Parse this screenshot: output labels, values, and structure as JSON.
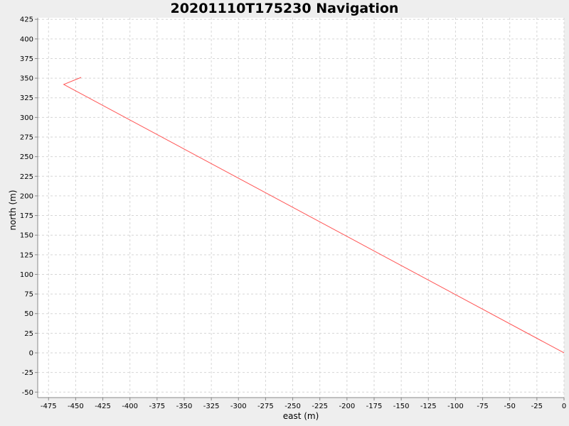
{
  "chart_data": {
    "type": "line",
    "title": "20201110T175230 Navigation",
    "xlabel": "east (m)",
    "ylabel": "north (m)",
    "xlim": [
      -485,
      0
    ],
    "ylim": [
      -57,
      427
    ],
    "xticks": [
      -475,
      -450,
      -425,
      -400,
      -375,
      -350,
      -325,
      -300,
      -275,
      -250,
      -225,
      -200,
      -175,
      -150,
      -125,
      -100,
      -75,
      -50,
      -25,
      0
    ],
    "yticks": [
      -50,
      -25,
      0,
      25,
      50,
      75,
      100,
      125,
      150,
      175,
      200,
      225,
      250,
      275,
      300,
      325,
      350,
      375,
      400,
      425
    ],
    "grid": true,
    "series": [
      {
        "color": "#ff5555",
        "x": [
          -445,
          -461,
          0
        ],
        "y": [
          351,
          342,
          0
        ]
      }
    ]
  }
}
